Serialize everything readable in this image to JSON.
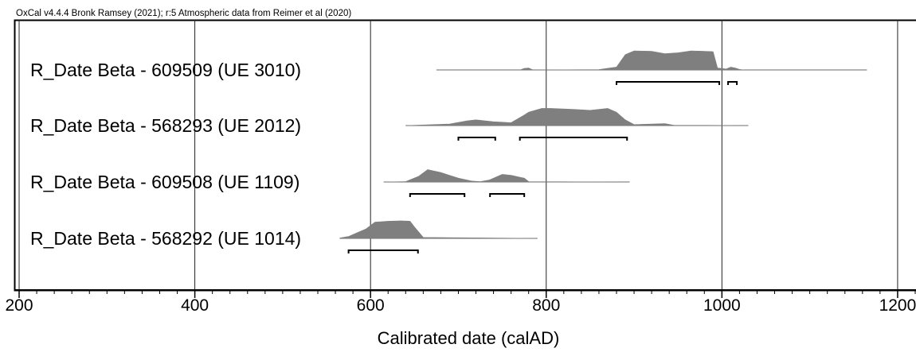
{
  "header": "OxCal v4.4.4 Bronk Ramsey (2021); r:5 Atmospheric data from Reimer et al (2020)",
  "chart_data": {
    "type": "area",
    "title": "",
    "xlabel": "Calibrated date (calAD)",
    "ylabel": "",
    "xlim": [
      195,
      1225
    ],
    "x_ticks": [
      200,
      400,
      600,
      800,
      1000,
      1200
    ],
    "minor_tick_step": 20,
    "grid": "vertical lines at major ticks",
    "series": [
      {
        "name": "R_Date Beta - 609509 (UE 3010)",
        "x": [
          675,
          770,
          775,
          780,
          785,
          860,
          880,
          890,
          900,
          920,
          935,
          950,
          965,
          980,
          990,
          995,
          1005,
          1010,
          1015,
          1020,
          1025,
          1165
        ],
        "y": [
          0,
          0,
          0.08,
          0.1,
          0,
          0.02,
          0.15,
          0.8,
          1.0,
          0.98,
          0.85,
          0.9,
          1.0,
          0.98,
          0.96,
          0.1,
          0.05,
          0.15,
          0.1,
          0.03,
          0,
          0
        ],
        "ranges": [
          [
            880,
            997
          ],
          [
            1007,
            1017
          ]
        ]
      },
      {
        "name": "R_Date Beta - 568293 (UE 2012)",
        "x": [
          640,
          690,
          710,
          720,
          740,
          760,
          775,
          780,
          795,
          805,
          830,
          850,
          870,
          880,
          890,
          900,
          935,
          945,
          1030
        ],
        "y": [
          0,
          0.08,
          0.25,
          0.3,
          0.2,
          0.15,
          0.55,
          0.7,
          0.9,
          0.9,
          0.85,
          0.8,
          0.9,
          0.7,
          0.3,
          0.05,
          0.1,
          0.02,
          0
        ],
        "ranges": [
          [
            700,
            742
          ],
          [
            770,
            892
          ]
        ]
      },
      {
        "name": "R_Date Beta - 609508 (UE 1109)",
        "x": [
          615,
          640,
          655,
          665,
          680,
          690,
          700,
          715,
          725,
          735,
          745,
          750,
          760,
          770,
          775,
          780,
          895
        ],
        "y": [
          0,
          0.02,
          0.3,
          0.65,
          0.5,
          0.35,
          0.2,
          0.05,
          0.02,
          0.1,
          0.3,
          0.4,
          0.35,
          0.25,
          0.2,
          0.02,
          0
        ],
        "ranges": [
          [
            645,
            707
          ],
          [
            736,
            775
          ]
        ]
      },
      {
        "name": "R_Date Beta - 568292 (UE 1014)",
        "x": [
          565,
          575,
          585,
          595,
          605,
          620,
          635,
          645,
          650,
          660,
          790
        ],
        "y": [
          0.02,
          0.1,
          0.3,
          0.5,
          0.85,
          0.9,
          0.92,
          0.9,
          0.6,
          0.05,
          0
        ],
        "ranges": [
          [
            575,
            654
          ]
        ]
      }
    ]
  }
}
